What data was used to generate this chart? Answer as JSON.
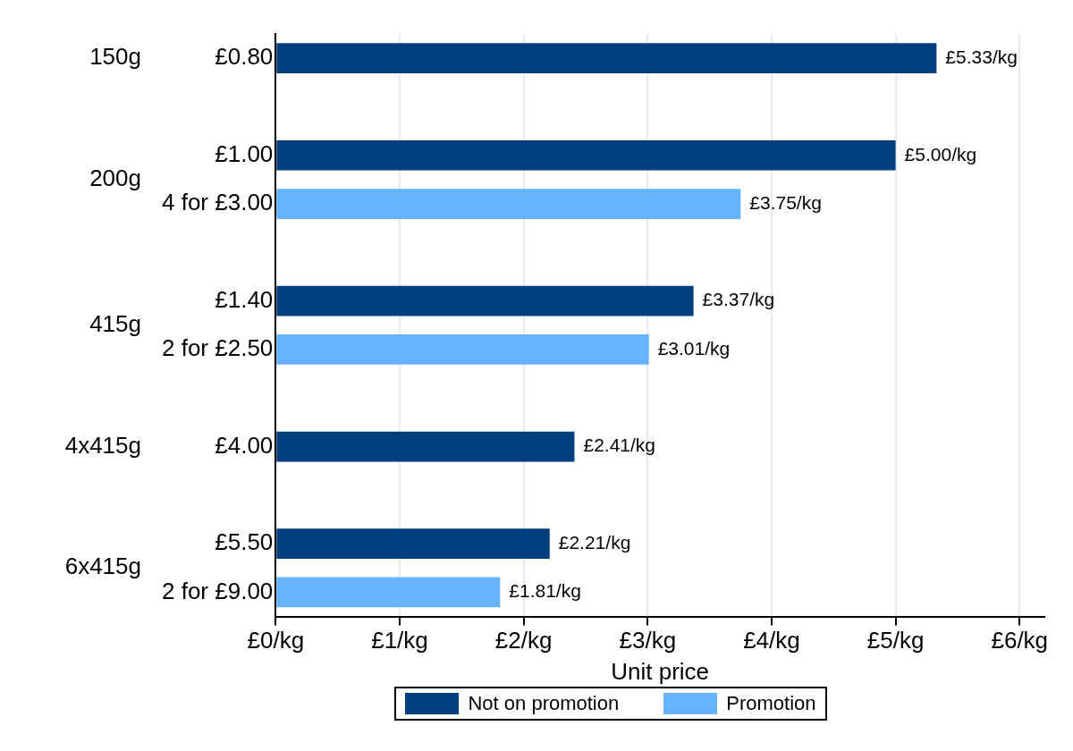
{
  "chart_data": {
    "type": "bar",
    "orientation": "horizontal",
    "xlabel": "Unit price",
    "categories": [
      "£0.80",
      null,
      "£1.00",
      "4 for £3.00",
      null,
      "£1.40",
      "2 for £2.50",
      null,
      "£4.00",
      null,
      "£5.50",
      "2 for £9.00"
    ],
    "series": [
      {
        "name": "Not on promotion",
        "color": "#003f7f",
        "values": [
          5.33,
          null,
          5.0,
          null,
          null,
          3.37,
          null,
          null,
          2.41,
          null,
          2.21,
          null
        ],
        "value_labels": [
          "£5.33/kg",
          null,
          "£5.00/kg",
          null,
          null,
          "£3.37/kg",
          null,
          null,
          "£2.41/kg",
          null,
          "£2.21/kg",
          null
        ]
      },
      {
        "name": "Promotion",
        "color": "#66b3ff",
        "values": [
          null,
          null,
          null,
          3.75,
          null,
          null,
          3.01,
          null,
          null,
          null,
          null,
          1.81
        ],
        "value_labels": [
          null,
          null,
          null,
          "£3.75/kg",
          null,
          null,
          "£3.01/kg",
          null,
          null,
          null,
          null,
          "£1.81/kg"
        ]
      }
    ],
    "xlim": [
      0,
      6.2
    ],
    "xticks": [
      {
        "value": 0,
        "label": "£0/kg"
      },
      {
        "value": 1,
        "label": "£1/kg"
      },
      {
        "value": 2,
        "label": "£2/kg"
      },
      {
        "value": 3,
        "label": "£3/kg"
      },
      {
        "value": 4,
        "label": "£4/kg"
      },
      {
        "value": 5,
        "label": "£5/kg"
      },
      {
        "value": 6,
        "label": "£6/kg"
      }
    ],
    "annotations": [
      "150g",
      "200g",
      "415g",
      "4x415g",
      "6x415g"
    ],
    "grid": "x",
    "legend": "bottom"
  }
}
